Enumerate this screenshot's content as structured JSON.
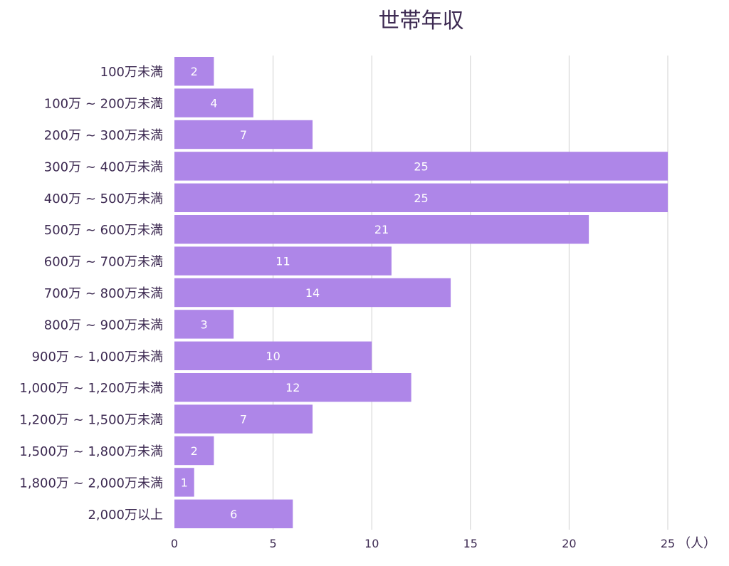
{
  "chart_data": {
    "type": "bar",
    "orientation": "horizontal",
    "title": "世帯年収",
    "xlabel": "（人）",
    "ylabel": "",
    "xlim": [
      0,
      25
    ],
    "x_ticks": [
      "0",
      "5",
      "10",
      "15",
      "20",
      "25"
    ],
    "grid": true,
    "categories": [
      "100万未満",
      "100万 ~ 200万未満",
      "200万 ~ 300万未満",
      "300万 ~ 400万未満",
      "400万 ~ 500万未満",
      "500万 ~ 600万未満",
      "600万 ~ 700万未満",
      "700万 ~ 800万未満",
      "800万 ~ 900万未満",
      "900万 ~ 1,000万未満",
      "1,000万 ~ 1,200万未満",
      "1,200万 ~ 1,500万未満",
      "1,500万 ~ 1,800万未満",
      "1,800万 ~ 2,000万未満",
      "2,000万以上"
    ],
    "values": [
      2,
      4,
      7,
      25,
      25,
      21,
      11,
      14,
      3,
      10,
      12,
      7,
      2,
      1,
      6
    ],
    "bar_color": "#ae86e8",
    "label_color": "#ffffff",
    "text_color": "#3d2a52",
    "grid_color": "#d0d0d0"
  }
}
